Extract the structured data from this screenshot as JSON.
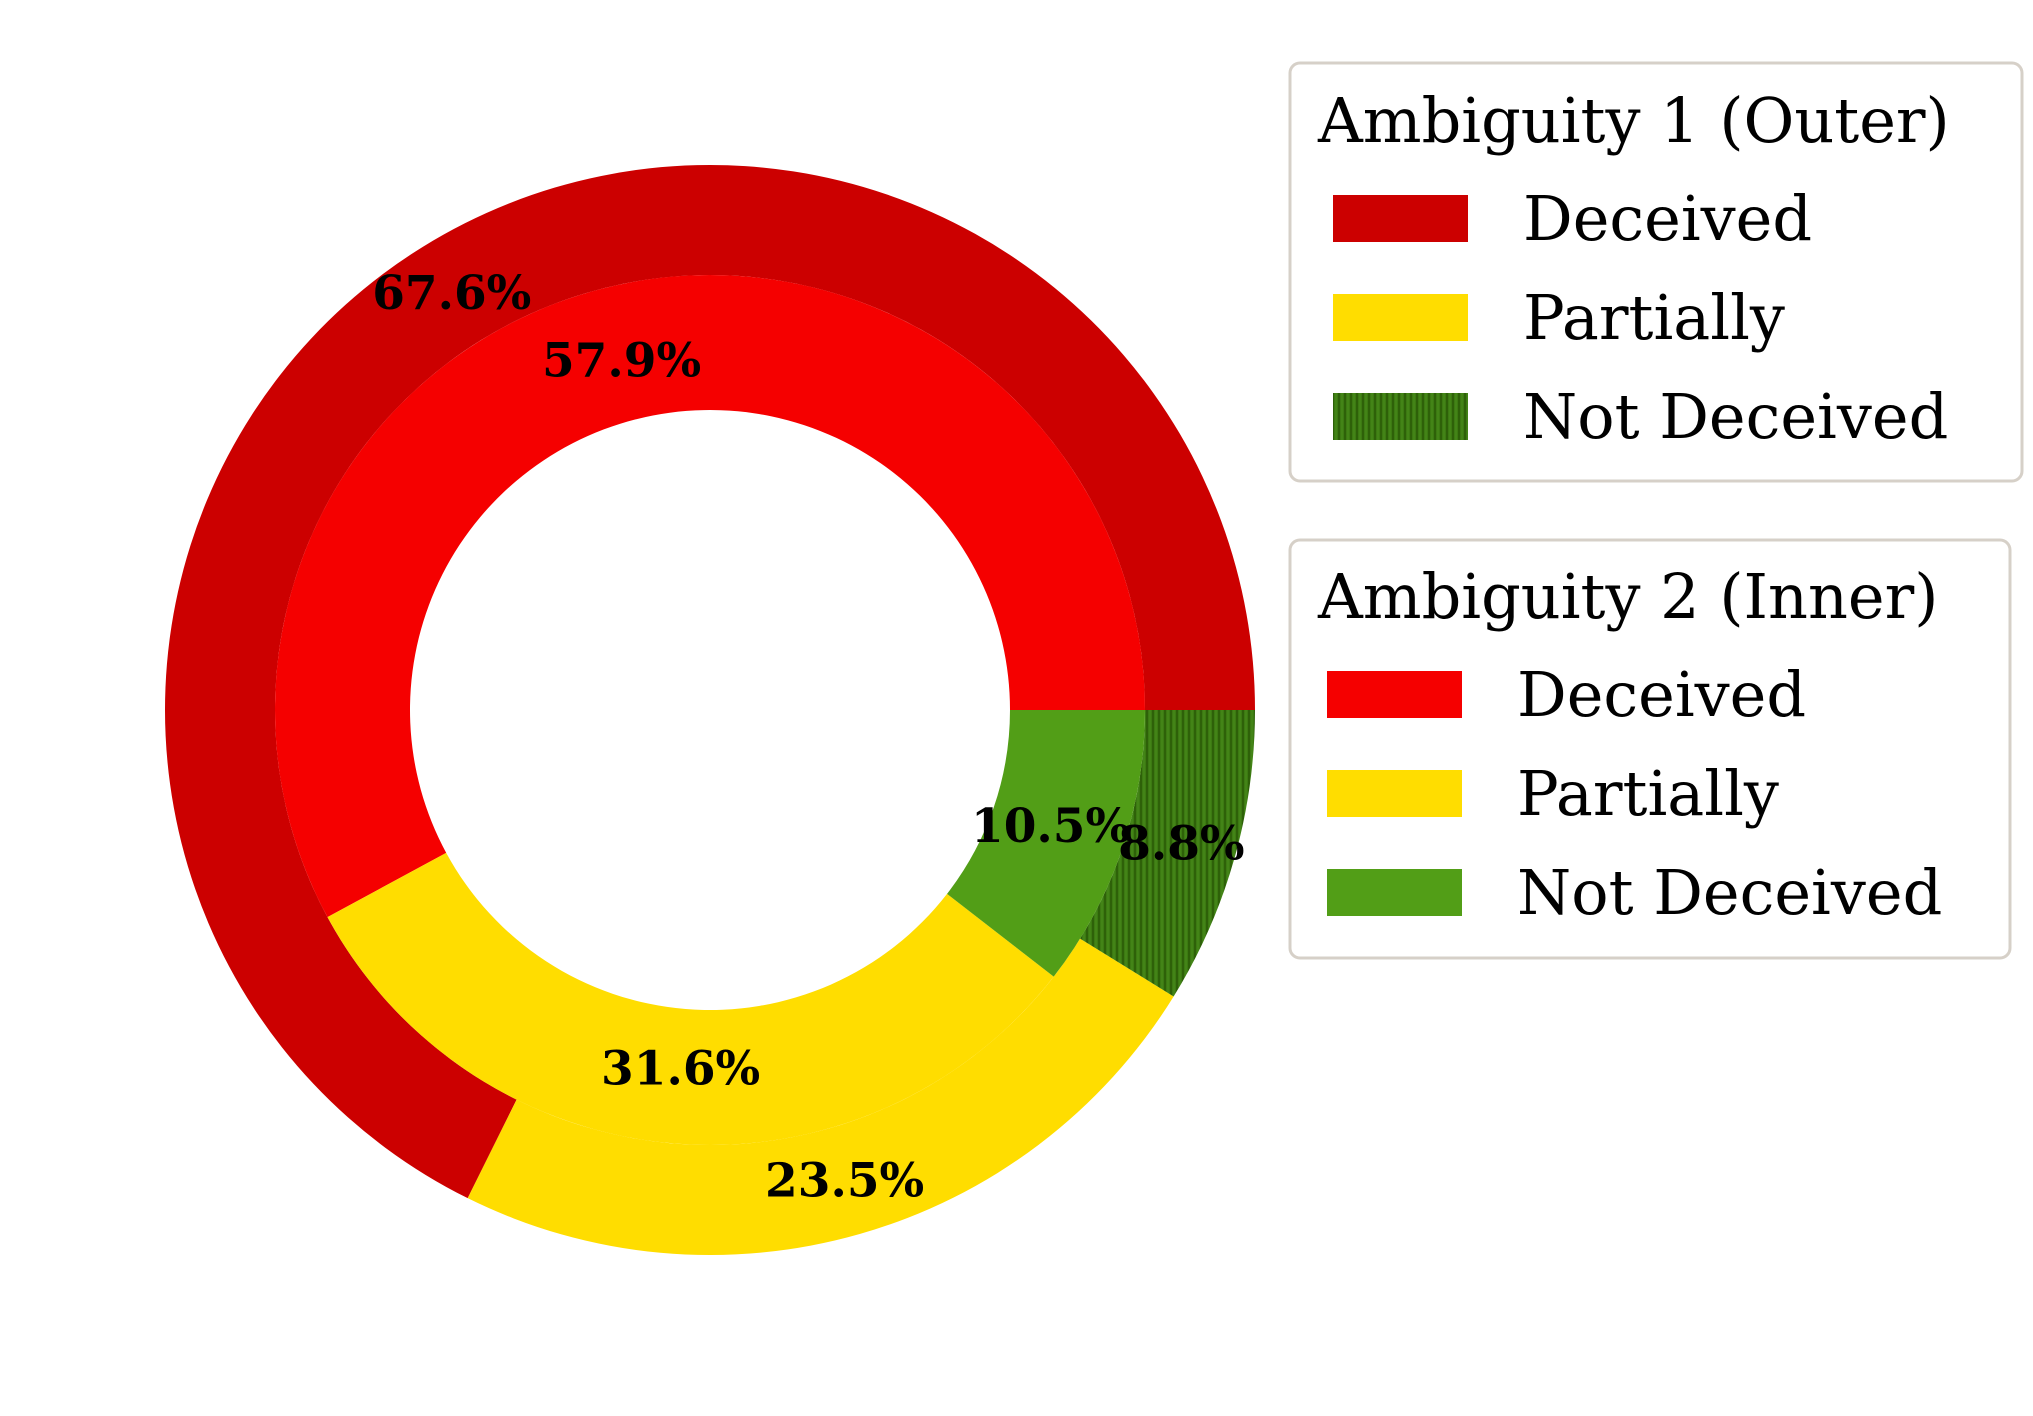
{
  "chart_data": {
    "type": "pie",
    "rings": [
      {
        "ring": "outer",
        "legend_title": "Ambiguity 1 (Outer)",
        "categories": [
          "Deceived",
          "Partially",
          "Not Deceived"
        ],
        "values": [
          67.6,
          23.5,
          8.8
        ],
        "labels": [
          "67.6%",
          "23.5%",
          "8.8%"
        ],
        "colors": [
          "#cc0000",
          "#ffdd00",
          "#3c7a12"
        ]
      },
      {
        "ring": "inner",
        "legend_title": "Ambiguity 2 (Inner)",
        "categories": [
          "Deceived",
          "Partially",
          "Not Deceived"
        ],
        "values": [
          57.9,
          31.6,
          10.5
        ],
        "labels": [
          "57.9%",
          "31.6%",
          "10.5%"
        ],
        "colors": [
          "#f50000",
          "#ffdd00",
          "#529e17"
        ]
      }
    ],
    "start_angle_deg": 0,
    "direction": "counterclockwise",
    "legend_placement": "right"
  }
}
